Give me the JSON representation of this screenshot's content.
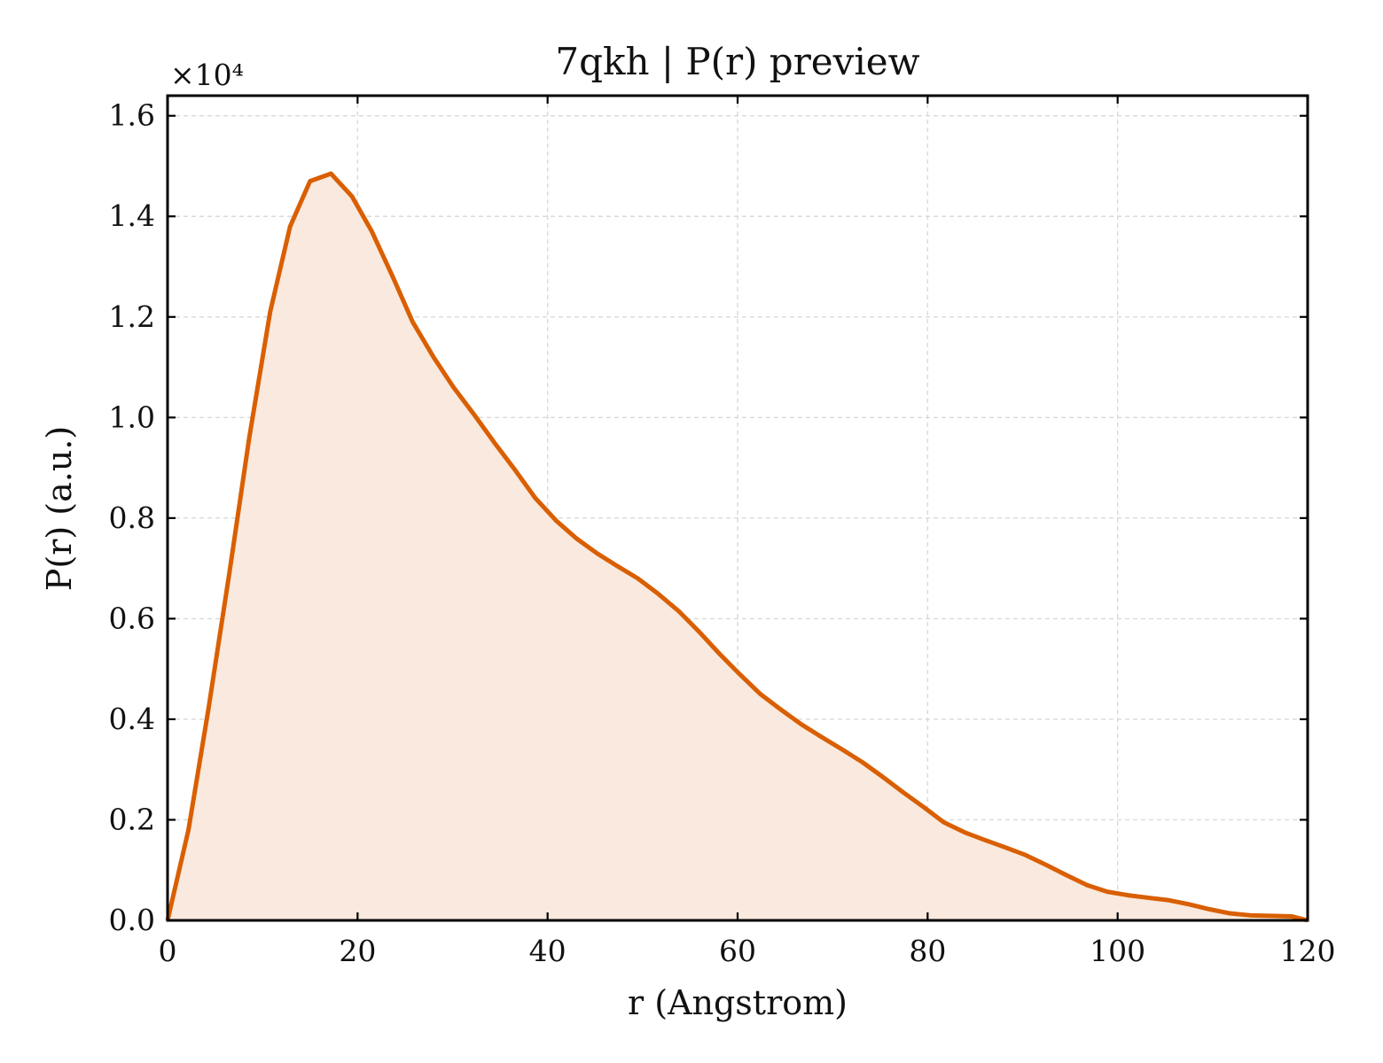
{
  "chart_data": {
    "type": "area",
    "title": "7qkh | P(r) preview",
    "xlabel": "r (Angstrom)",
    "ylabel": "P(r) (a.u.)",
    "y_multiplier_label": "×10⁴",
    "y_multiplier": 10000,
    "xlim": [
      0,
      120
    ],
    "ylim": [
      0,
      16400
    ],
    "xticks": [
      0,
      20,
      40,
      60,
      80,
      100,
      120
    ],
    "yticks": [
      0,
      2000,
      4000,
      6000,
      8000,
      10000,
      12000,
      14000,
      16000
    ],
    "ytick_labels": [
      "0.0",
      "0.2",
      "0.4",
      "0.6",
      "0.8",
      "1.0",
      "1.2",
      "1.4",
      "1.6"
    ],
    "grid": true,
    "line_color": "#d95f02",
    "fill_color": "#f9e9de",
    "series": [
      {
        "x": [
          0,
          2.2,
          4.3,
          6.5,
          8.6,
          10.8,
          12.9,
          15.0,
          17.2,
          19.4,
          21.5,
          23.7,
          25.8,
          28.0,
          30.1,
          32.3,
          34.4,
          36.6,
          38.7,
          40.9,
          43.0,
          45.2,
          47.3,
          49.5,
          51.6,
          53.8,
          55.9,
          58.1,
          60.2,
          62.4,
          64.5,
          66.7,
          68.8,
          71.0,
          73.1,
          75.3,
          77.4,
          79.6,
          81.7,
          83.9,
          86.0,
          88.2,
          90.3,
          92.5,
          94.6,
          96.8,
          98.9,
          101.1,
          103.2,
          105.4,
          107.5,
          109.7,
          111.8,
          114.0,
          116.1,
          118.3,
          120.0
        ],
        "y": [
          0,
          1800,
          4200,
          6900,
          9600,
          12100,
          13800,
          14700,
          14850,
          14400,
          13700,
          12800,
          11900,
          11200,
          10600,
          10050,
          9500,
          8950,
          8400,
          7950,
          7600,
          7300,
          7050,
          6800,
          6500,
          6150,
          5750,
          5300,
          4900,
          4500,
          4200,
          3900,
          3650,
          3400,
          3150,
          2850,
          2550,
          2250,
          1950,
          1750,
          1600,
          1450,
          1300,
          1100,
          900,
          700,
          570,
          500,
          450,
          400,
          320,
          220,
          140,
          100,
          90,
          80,
          0
        ]
      }
    ]
  }
}
